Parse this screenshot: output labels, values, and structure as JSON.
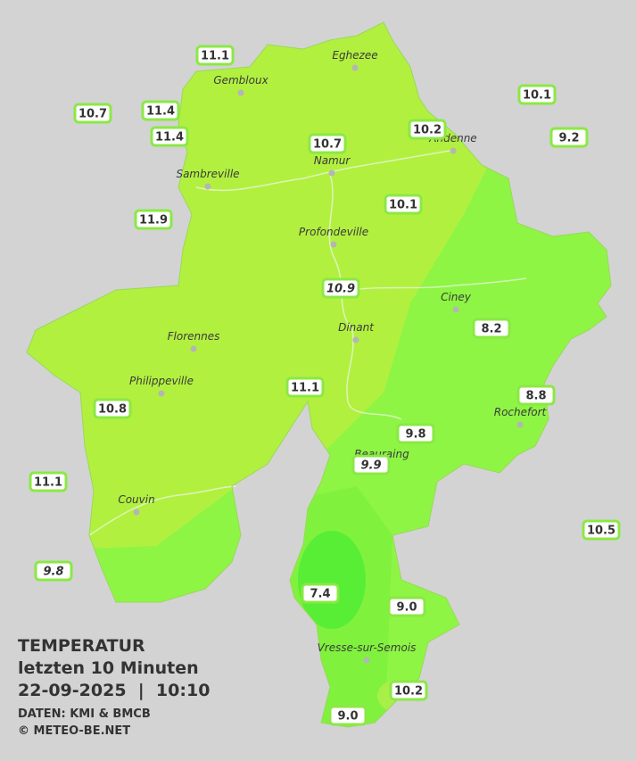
{
  "cities": [
    {
      "name": "Eghezee"
    },
    {
      "name": "Gembloux"
    },
    {
      "name": "Andenne"
    },
    {
      "name": "Namur"
    },
    {
      "name": "Sambreville"
    },
    {
      "name": "Profondeville"
    },
    {
      "name": "Ciney"
    },
    {
      "name": "Dinant"
    },
    {
      "name": "Florennes"
    },
    {
      "name": "Philippeville"
    },
    {
      "name": "Rochefort"
    },
    {
      "name": "Beauraing"
    },
    {
      "name": "Couvin"
    },
    {
      "name": "Vresse-sur-Semois"
    }
  ],
  "stations": [
    {
      "label": "11.1"
    },
    {
      "label": "10.7"
    },
    {
      "label": "11.4"
    },
    {
      "label": "11.4"
    },
    {
      "label": "10.7"
    },
    {
      "label": "10.2"
    },
    {
      "label": "10.1"
    },
    {
      "label": "9.2"
    },
    {
      "label": "11.9"
    },
    {
      "label": "10.1"
    },
    {
      "label": "10.9"
    },
    {
      "label": "8.2"
    },
    {
      "label": "11.1"
    },
    {
      "label": "10.8"
    },
    {
      "label": "8.8"
    },
    {
      "label": "9.8"
    },
    {
      "label": "9.9"
    },
    {
      "label": "11.1"
    },
    {
      "label": "10.5"
    },
    {
      "label": "9.8"
    },
    {
      "label": "7.4"
    },
    {
      "label": "9.0"
    },
    {
      "label": "10.2"
    },
    {
      "label": "9.0"
    }
  ],
  "legend": {
    "title": "TEMPERATUR",
    "subtitle": "letzten 10 Minuten",
    "datetime": "22-09-2025  |  10:10",
    "source": "DATEN: KMI & BMCB",
    "copyright": "© METEO-BE.NET"
  }
}
